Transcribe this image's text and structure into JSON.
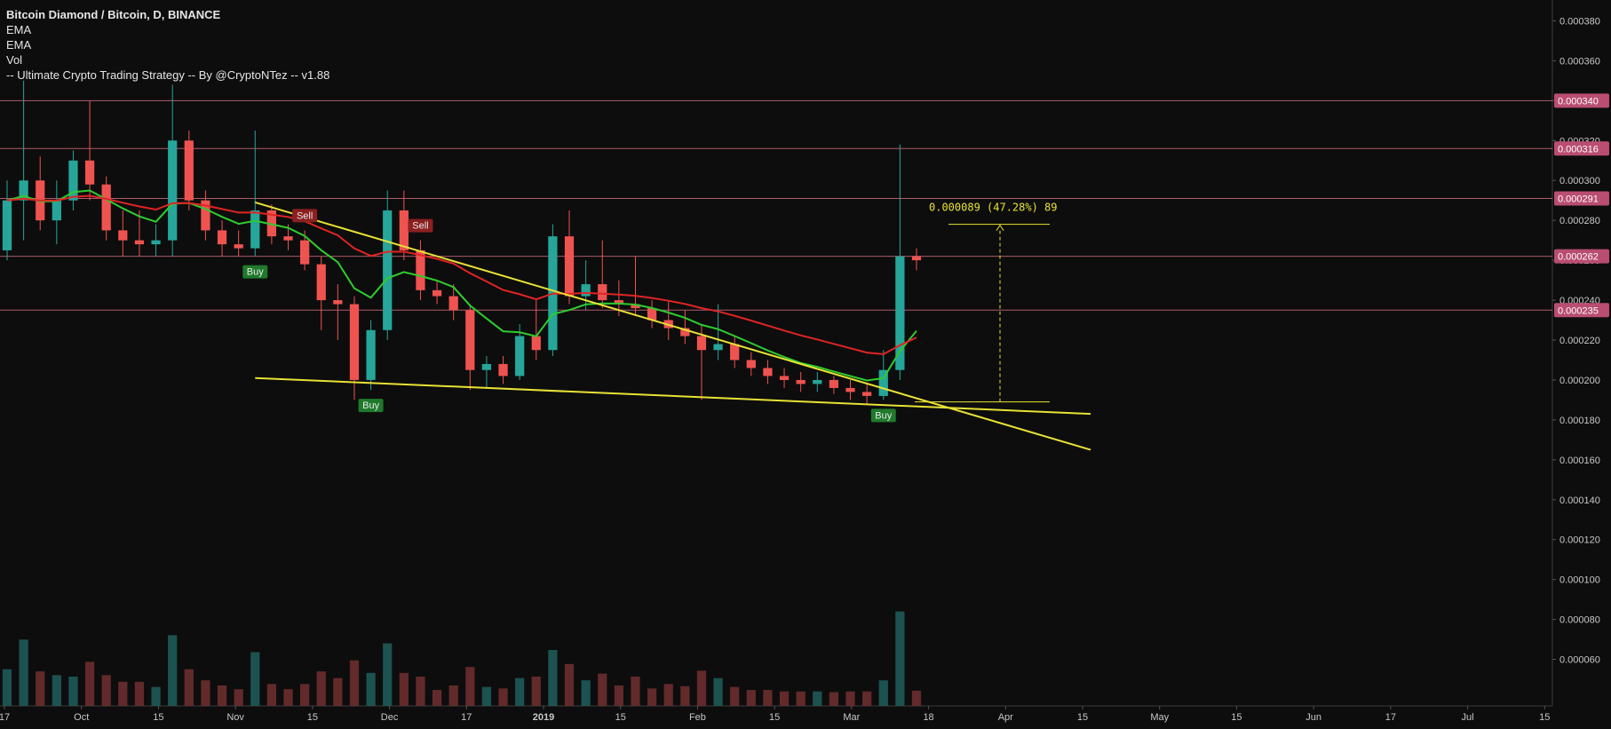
{
  "legend": {
    "title": "Bitcoin Diamond / Bitcoin, D, BINANCE",
    "indicators": [
      "EMA",
      "EMA",
      "Vol",
      "-- Ultimate Crypto Trading Strategy -- By @CryptoNTez -- v1.88"
    ]
  },
  "chart_data": {
    "type": "candlestick",
    "symbol": "Bitcoin Diamond / Bitcoin",
    "interval": "D",
    "exchange": "BINANCE",
    "ylim": [
      5e-05,
      0.00039
    ],
    "y_ticks": [
      "0.000380",
      "0.000360",
      "0.000340",
      "0.000320",
      "0.000300",
      "0.000280",
      "0.000260",
      "0.000240",
      "0.000220",
      "0.000200",
      "0.000180",
      "0.000160",
      "0.000140",
      "0.000120",
      "0.000100",
      "0.000080",
      "0.000060"
    ],
    "x_ticks": [
      "17",
      "Oct",
      "15",
      "Nov",
      "15",
      "Dec",
      "17",
      "2019",
      "15",
      "Feb",
      "15",
      "Mar",
      "18",
      "Apr",
      "15",
      "May",
      "15",
      "Jun",
      "17",
      "Jul",
      "15"
    ],
    "x_tick_bold": "2019",
    "horizontal_levels": [
      {
        "value": 0.00034,
        "label": "0.000340"
      },
      {
        "value": 0.000316,
        "label": "0.000316"
      },
      {
        "value": 0.000291,
        "label": "0.000291"
      },
      {
        "value": 0.000262,
        "label": "0.000262"
      },
      {
        "value": 0.000235,
        "label": "0.000235"
      }
    ],
    "candles_ohlc": [
      [
        0.000265,
        0.0003,
        0.00026,
        0.00029
      ],
      [
        0.00029,
        0.00035,
        0.00027,
        0.0003
      ],
      [
        0.0003,
        0.000312,
        0.000275,
        0.00028
      ],
      [
        0.00028,
        0.0003,
        0.000268,
        0.00029
      ],
      [
        0.00029,
        0.000315,
        0.000285,
        0.00031
      ],
      [
        0.00031,
        0.00034,
        0.00029,
        0.000298
      ],
      [
        0.000298,
        0.000302,
        0.00027,
        0.000275
      ],
      [
        0.000275,
        0.000285,
        0.000262,
        0.00027
      ],
      [
        0.00027,
        0.000285,
        0.000262,
        0.000268
      ],
      [
        0.000268,
        0.000278,
        0.000262,
        0.00027
      ],
      [
        0.00027,
        0.000348,
        0.000262,
        0.00032
      ],
      [
        0.00032,
        0.000325,
        0.000285,
        0.00029
      ],
      [
        0.00029,
        0.000295,
        0.00027,
        0.000275
      ],
      [
        0.000275,
        0.00028,
        0.000262,
        0.000268
      ],
      [
        0.000268,
        0.000275,
        0.000262,
        0.000266
      ],
      [
        0.000266,
        0.000325,
        0.000262,
        0.000285
      ],
      [
        0.000285,
        0.000288,
        0.000268,
        0.000272
      ],
      [
        0.000272,
        0.000278,
        0.000265,
        0.00027
      ],
      [
        0.00027,
        0.000275,
        0.000255,
        0.000258
      ],
      [
        0.000258,
        0.000262,
        0.000225,
        0.00024
      ],
      [
        0.00024,
        0.000248,
        0.00022,
        0.000238
      ],
      [
        0.000238,
        0.000242,
        0.00019,
        0.0002
      ],
      [
        0.0002,
        0.00023,
        0.000195,
        0.000225
      ],
      [
        0.000225,
        0.000295,
        0.00022,
        0.000285
      ],
      [
        0.000285,
        0.000295,
        0.00026,
        0.000265
      ],
      [
        0.000265,
        0.00027,
        0.00024,
        0.000245
      ],
      [
        0.000245,
        0.00025,
        0.000238,
        0.000242
      ],
      [
        0.000242,
        0.000248,
        0.00023,
        0.000235
      ],
      [
        0.000235,
        0.000238,
        0.000195,
        0.000205
      ],
      [
        0.000205,
        0.000212,
        0.000196,
        0.000208
      ],
      [
        0.000208,
        0.000212,
        0.000198,
        0.000202
      ],
      [
        0.000202,
        0.000228,
        0.0002,
        0.000222
      ],
      [
        0.000222,
        0.00024,
        0.00021,
        0.000215
      ],
      [
        0.000215,
        0.000278,
        0.000212,
        0.000272
      ],
      [
        0.000272,
        0.000285,
        0.000238,
        0.000242
      ],
      [
        0.000242,
        0.00026,
        0.000235,
        0.000248
      ],
      [
        0.000248,
        0.00027,
        0.000236,
        0.00024
      ],
      [
        0.00024,
        0.00025,
        0.000232,
        0.000238
      ],
      [
        0.000238,
        0.000262,
        0.000232,
        0.000236
      ],
      [
        0.000236,
        0.00024,
        0.000226,
        0.00023
      ],
      [
        0.00023,
        0.00024,
        0.00022,
        0.000226
      ],
      [
        0.000226,
        0.000235,
        0.000218,
        0.000222
      ],
      [
        0.000222,
        0.000228,
        0.00019,
        0.000215
      ],
      [
        0.000215,
        0.000238,
        0.00021,
        0.000218
      ],
      [
        0.000218,
        0.000222,
        0.000206,
        0.00021
      ],
      [
        0.00021,
        0.000214,
        0.000202,
        0.000206
      ],
      [
        0.000206,
        0.00021,
        0.000198,
        0.000202
      ],
      [
        0.000202,
        0.000206,
        0.000196,
        0.0002
      ],
      [
        0.0002,
        0.000204,
        0.000194,
        0.000198
      ],
      [
        0.000198,
        0.000204,
        0.000194,
        0.0002
      ],
      [
        0.0002,
        0.000202,
        0.000193,
        0.000196
      ],
      [
        0.000196,
        0.0002,
        0.00019,
        0.000194
      ],
      [
        0.000194,
        0.000198,
        0.000188,
        0.000192
      ],
      [
        0.000192,
        0.000215,
        0.00019,
        0.000205
      ],
      [
        0.000205,
        0.000318,
        0.0002,
        0.000262
      ],
      [
        0.000262,
        0.000266,
        0.000255,
        0.00026
      ]
    ],
    "volume": [],
    "ema_fast": {
      "color": "#2ecc2e"
    },
    "ema_slow": {
      "color": "#e02424"
    },
    "signals": [
      {
        "label": "Buy",
        "type": "buy"
      },
      {
        "label": "Sell",
        "type": "sell"
      },
      {
        "label": "Buy",
        "type": "buy"
      },
      {
        "label": "Sell",
        "type": "sell"
      },
      {
        "label": "Buy",
        "type": "buy"
      }
    ],
    "measure": {
      "text": "0.000089 (47.28%) 89",
      "from": 0.000189,
      "to": 0.000278
    },
    "trendlines": [
      {
        "from": 0.000289,
        "to": 0.000165,
        "color": "#e8e235"
      },
      {
        "from": 0.000201,
        "to": 0.000183,
        "color": "#e8e235"
      }
    ],
    "colors": {
      "up": "#26a69a",
      "down": "#ef5350",
      "level": "#c9697a",
      "levelLabelBg": "#b94d72",
      "buyBg": "#1f7a2b",
      "sellBg": "#8c1f1f"
    }
  }
}
